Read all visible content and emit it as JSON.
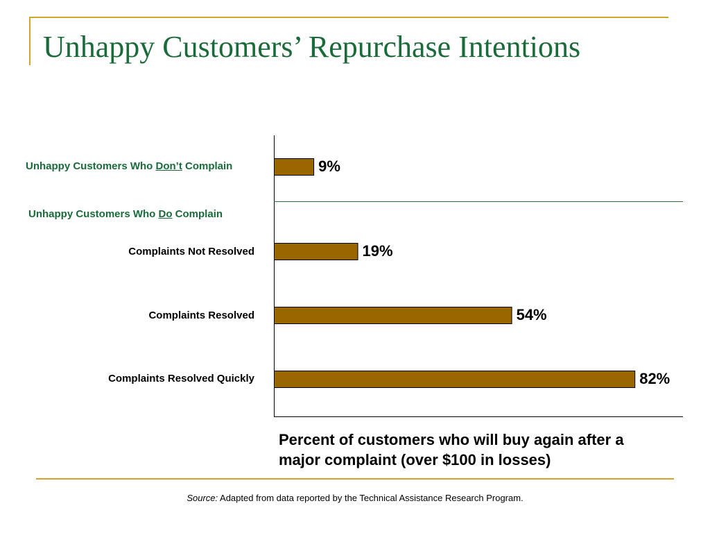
{
  "colors": {
    "accent_gold": "#d4a52a",
    "title_green": "#1a6b3a",
    "bar_fill": "#996600",
    "bar_stroke": "#000000",
    "divider": "#2e6b3a"
  },
  "title": "Unhappy Customers’ Repurchase Intentions",
  "groups": {
    "dont": {
      "prefix": "Unhappy Customers Who ",
      "emph": "Don’t",
      "suffix": " Complain"
    },
    "do": {
      "prefix": "Unhappy Customers Who ",
      "emph": "Do",
      "suffix": " Complain"
    }
  },
  "chart_data": {
    "type": "bar",
    "orientation": "horizontal",
    "title": "",
    "categories": [
      "",
      "Complaints Not Resolved",
      "Complaints Resolved",
      "Complaints Resolved Quickly"
    ],
    "values": [
      9,
      19,
      54,
      82
    ],
    "value_labels": [
      "9%",
      "19%",
      "54%",
      "82%"
    ],
    "xlabel": "Percent of customers who will buy again after a major complaint (over $100 in losses)",
    "ylabel": "",
    "xlim": [
      0,
      93
    ],
    "grid": false,
    "legend": "none"
  },
  "source": {
    "label": "Source:",
    "text": " Adapted from data reported by the Technical Assistance Research Program."
  }
}
